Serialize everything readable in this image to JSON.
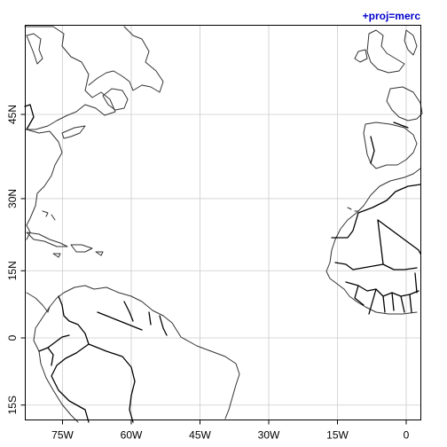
{
  "map": {
    "projection_label": "+proj=merc",
    "projection_color": "#0000cc",
    "grid_color": "#cccccc",
    "coast_color": "#333333",
    "border_color": "#000000",
    "extent": {
      "lon": [
        -85,
        3
      ],
      "lat": [
        -17,
        55
      ]
    },
    "x_ticks": [
      {
        "value": -75,
        "label": "75W"
      },
      {
        "value": -60,
        "label": "60W"
      },
      {
        "value": -45,
        "label": "45W"
      },
      {
        "value": -30,
        "label": "30W"
      },
      {
        "value": -15,
        "label": "15W"
      },
      {
        "value": 0,
        "label": "0"
      }
    ],
    "y_ticks": [
      {
        "value": -15,
        "label": "15S"
      },
      {
        "value": 0,
        "label": "0"
      },
      {
        "value": 15,
        "label": "15N"
      },
      {
        "value": 30,
        "label": "30N"
      },
      {
        "value": 45,
        "label": "45N"
      }
    ]
  }
}
